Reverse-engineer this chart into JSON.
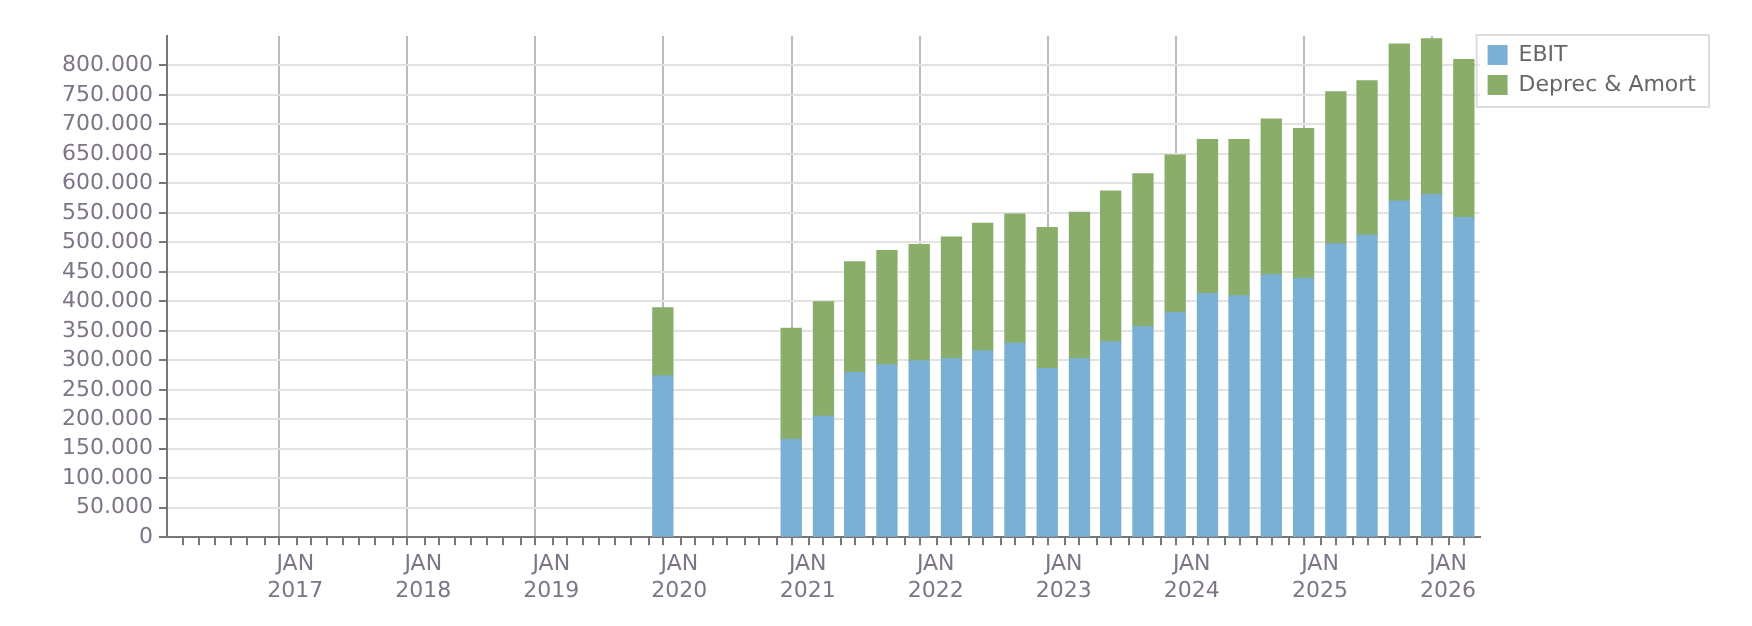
{
  "chart_data": {
    "type": "bar",
    "stacked": true,
    "x": [
      "2019-11-15",
      "2020-11-15",
      "2021-02-15",
      "2021-05-15",
      "2021-08-15",
      "2021-11-15",
      "2022-02-15",
      "2022-05-15",
      "2022-08-15",
      "2022-11-15",
      "2023-02-15",
      "2023-05-15",
      "2023-08-15",
      "2023-11-15",
      "2024-02-15",
      "2024-05-15",
      "2024-08-15",
      "2024-11-15",
      "2025-02-15",
      "2025-05-15",
      "2025-08-15",
      "2025-11-15",
      "2026-02-15"
    ],
    "series": [
      {
        "name": "EBIT",
        "color": "#79b0d3",
        "values": [
          273000,
          166000,
          205000,
          279000,
          292000,
          299000,
          303000,
          316000,
          329000,
          286000,
          303000,
          331000,
          357000,
          381000,
          413000,
          409000,
          445000,
          439000,
          497000,
          512000,
          570000,
          581000,
          542000
        ]
      },
      {
        "name": "Deprec & Amort",
        "color": "#8aae6a",
        "values": [
          116000,
          188000,
          194000,
          188000,
          194000,
          197000,
          206000,
          216000,
          219000,
          239000,
          248000,
          256000,
          259000,
          267000,
          261000,
          265000,
          264000,
          254000,
          258000,
          262000,
          266000,
          264000,
          268000
        ]
      }
    ],
    "xlim": [
      "2016-01-01",
      "2026-04-01"
    ],
    "xticks": [
      {
        "value": "2016-04-01",
        "label": null
      },
      {
        "value": "2016-07-01",
        "label": null
      },
      {
        "value": "2016-10-01",
        "label": null
      },
      {
        "value": "2017-01-01",
        "label": "JAN 2017"
      },
      {
        "value": "2017-04-01",
        "label": null
      },
      {
        "value": "2017-07-01",
        "label": null
      },
      {
        "value": "2017-10-01",
        "label": null
      },
      {
        "value": "2018-01-01",
        "label": "JAN 2018"
      },
      {
        "value": "2018-04-01",
        "label": null
      },
      {
        "value": "2018-07-01",
        "label": null
      },
      {
        "value": "2018-10-01",
        "label": null
      },
      {
        "value": "2019-01-01",
        "label": "JAN 2019"
      },
      {
        "value": "2019-04-01",
        "label": null
      },
      {
        "value": "2019-07-01",
        "label": null
      },
      {
        "value": "2019-10-01",
        "label": null
      },
      {
        "value": "2020-01-01",
        "label": "JAN 2020"
      },
      {
        "value": "2020-04-01",
        "label": null
      },
      {
        "value": "2020-07-01",
        "label": null
      },
      {
        "value": "2020-10-01",
        "label": null
      },
      {
        "value": "2021-01-01",
        "label": "JAN 2021"
      },
      {
        "value": "2021-04-01",
        "label": null
      },
      {
        "value": "2021-07-01",
        "label": null
      },
      {
        "value": "2021-10-01",
        "label": null
      },
      {
        "value": "2022-01-01",
        "label": "JAN 2022"
      },
      {
        "value": "2022-04-01",
        "label": null
      },
      {
        "value": "2022-07-01",
        "label": null
      },
      {
        "value": "2022-10-01",
        "label": null
      },
      {
        "value": "2023-01-01",
        "label": "JAN 2023"
      },
      {
        "value": "2023-04-01",
        "label": null
      },
      {
        "value": "2023-07-01",
        "label": null
      },
      {
        "value": "2023-10-01",
        "label": null
      },
      {
        "value": "2024-01-01",
        "label": "JAN 2024"
      },
      {
        "value": "2024-04-01",
        "label": null
      },
      {
        "value": "2024-07-01",
        "label": null
      },
      {
        "value": "2024-10-01",
        "label": null
      },
      {
        "value": "2025-01-01",
        "label": "JAN 2025"
      },
      {
        "value": "2025-04-01",
        "label": null
      },
      {
        "value": "2025-07-01",
        "label": null
      },
      {
        "value": "2025-10-01",
        "label": null
      },
      {
        "value": "2026-01-01",
        "label": "JAN 2026"
      }
    ],
    "ylim": [
      0,
      850000
    ],
    "yticks": [
      0,
      {
        "value": 50000,
        "label": "50.000"
      },
      {
        "value": 100000,
        "label": "100.000"
      },
      {
        "value": 150000,
        "label": "150.000"
      },
      {
        "value": 200000,
        "label": "200.000"
      },
      {
        "value": 250000,
        "label": "250.000"
      },
      {
        "value": 300000,
        "label": "300.000"
      },
      {
        "value": 350000,
        "label": "350.000"
      },
      {
        "value": 400000,
        "label": "400.000"
      },
      {
        "value": 450000,
        "label": "450.000"
      },
      {
        "value": 500000,
        "label": "500.000"
      },
      {
        "value": 550000,
        "label": "550.000"
      },
      {
        "value": 600000,
        "label": "600.000"
      },
      {
        "value": 650000,
        "label": "650.000"
      },
      {
        "value": 700000,
        "label": "700.000"
      },
      {
        "value": 750000,
        "label": "750.000"
      },
      {
        "value": 800000,
        "label": "800.000"
      }
    ],
    "grid": true,
    "legend": "top right"
  }
}
